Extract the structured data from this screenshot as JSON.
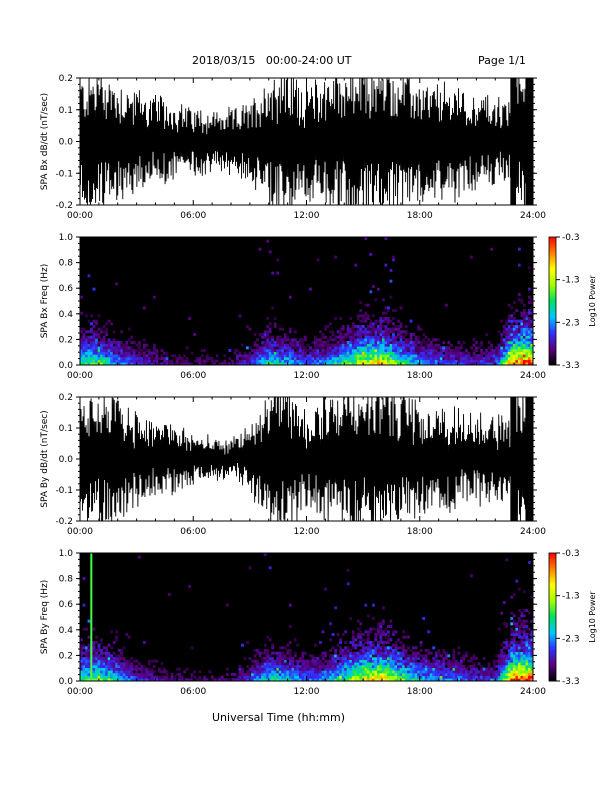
{
  "header": {
    "title": "2018/03/15   00:00-24:00 UT",
    "page": "Page 1/1"
  },
  "xlabel": "Universal Time (hh:mm)",
  "chart_data": [
    {
      "type": "line",
      "ylabel": "SPA Bx dB/dt (nT/sec)",
      "xlim": [
        0,
        24
      ],
      "ylim": [
        -0.2,
        0.2
      ],
      "x_ticks": [
        "00:00",
        "06:00",
        "12:00",
        "18:00",
        "24:00"
      ],
      "y_ticks": [
        "0.2",
        "0.1",
        "0.0",
        "-0.1",
        "-0.2"
      ],
      "series": [
        {
          "color": "#000000",
          "envelope_x_hours": [
            0,
            1,
            2,
            3,
            4,
            5,
            6,
            7,
            8,
            9,
            10,
            11,
            12,
            13,
            14,
            15,
            16,
            17,
            18,
            19,
            20,
            21,
            22,
            22.8,
            23,
            24
          ],
          "envelope_amplitude": [
            0.17,
            0.2,
            0.16,
            0.14,
            0.12,
            0.1,
            0.09,
            0.08,
            0.08,
            0.1,
            0.18,
            0.2,
            0.15,
            0.18,
            0.2,
            0.2,
            0.2,
            0.18,
            0.15,
            0.15,
            0.15,
            0.12,
            0.12,
            0.1,
            0.2,
            0.2
          ]
        }
      ]
    },
    {
      "type": "heatmap",
      "ylabel": "SPA Bx Freq (Hz)",
      "xlim": [
        0,
        24
      ],
      "ylim": [
        0.0,
        1.0
      ],
      "x_ticks": [
        "00:00",
        "06:00",
        "12:00",
        "18:00",
        "24:00"
      ],
      "y_ticks": [
        "1.0",
        "0.8",
        "0.6",
        "0.4",
        "0.2",
        "0.0"
      ],
      "colorbar": {
        "label": "Log10 Power",
        "ticks": [
          "-0.3",
          "-1.3",
          "-2.3",
          "-3.3"
        ],
        "range": [
          -3.3,
          -0.3
        ],
        "colors": [
          "#000000",
          "#5a0080",
          "#3030ff",
          "#00c8ff",
          "#00e060",
          "#a0ff00",
          "#ffff00",
          "#ff8000",
          "#ff0000"
        ]
      },
      "activity_hours": [
        0,
        1,
        2,
        3,
        4,
        5,
        6,
        7,
        8,
        9,
        10,
        11,
        12,
        13,
        14,
        15,
        16,
        17,
        18,
        19,
        20,
        21,
        22,
        23,
        24
      ],
      "activity_level": [
        0.5,
        0.55,
        0.4,
        0.3,
        0.25,
        0.2,
        0.2,
        0.2,
        0.2,
        0.3,
        0.5,
        0.45,
        0.35,
        0.4,
        0.55,
        0.7,
        0.75,
        0.55,
        0.4,
        0.35,
        0.3,
        0.3,
        0.3,
        0.9,
        0.95
      ]
    },
    {
      "type": "line",
      "ylabel": "SPA By dB/dt (nT/sec)",
      "xlim": [
        0,
        24
      ],
      "ylim": [
        -0.2,
        0.2
      ],
      "x_ticks": [
        "00:00",
        "06:00",
        "12:00",
        "18:00",
        "24:00"
      ],
      "y_ticks": [
        "0.2",
        "0.1",
        "0.0",
        "-0.1",
        "-0.2"
      ],
      "series": [
        {
          "color": "#000000",
          "envelope_x_hours": [
            0,
            1,
            2,
            3,
            4,
            5,
            6,
            7,
            8,
            9,
            10,
            11,
            12,
            13,
            14,
            15,
            16,
            17,
            18,
            19,
            20,
            21,
            22,
            22.8,
            23,
            24
          ],
          "envelope_amplitude": [
            0.14,
            0.2,
            0.16,
            0.13,
            0.11,
            0.09,
            0.07,
            0.05,
            0.05,
            0.09,
            0.18,
            0.2,
            0.13,
            0.18,
            0.2,
            0.2,
            0.2,
            0.18,
            0.14,
            0.14,
            0.14,
            0.12,
            0.12,
            0.1,
            0.2,
            0.2
          ]
        }
      ]
    },
    {
      "type": "heatmap",
      "ylabel": "SPA By Freq (Hz)",
      "xlim": [
        0,
        24
      ],
      "ylim": [
        0.0,
        1.0
      ],
      "x_ticks": [
        "00:00",
        "06:00",
        "12:00",
        "18:00",
        "24:00"
      ],
      "y_ticks": [
        "1.0",
        "0.8",
        "0.6",
        "0.4",
        "0.2",
        "0.0"
      ],
      "colorbar": {
        "label": "Log10 Power",
        "ticks": [
          "-0.3",
          "-1.3",
          "-2.3",
          "-3.3"
        ],
        "range": [
          -3.3,
          -0.3
        ],
        "colors": [
          "#000000",
          "#5a0080",
          "#3030ff",
          "#00c8ff",
          "#00e060",
          "#a0ff00",
          "#ffff00",
          "#ff8000",
          "#ff0000"
        ]
      },
      "activity_hours": [
        0,
        1,
        2,
        3,
        4,
        5,
        6,
        7,
        8,
        9,
        10,
        11,
        12,
        13,
        14,
        15,
        16,
        17,
        18,
        19,
        20,
        21,
        22,
        23,
        24
      ],
      "activity_level": [
        0.55,
        0.6,
        0.45,
        0.3,
        0.25,
        0.2,
        0.2,
        0.2,
        0.2,
        0.3,
        0.5,
        0.45,
        0.35,
        0.4,
        0.55,
        0.75,
        0.8,
        0.6,
        0.45,
        0.4,
        0.35,
        0.3,
        0.3,
        0.9,
        0.95
      ],
      "marker_line": {
        "x_hours": 0.6,
        "color": "#40ff40"
      }
    }
  ]
}
